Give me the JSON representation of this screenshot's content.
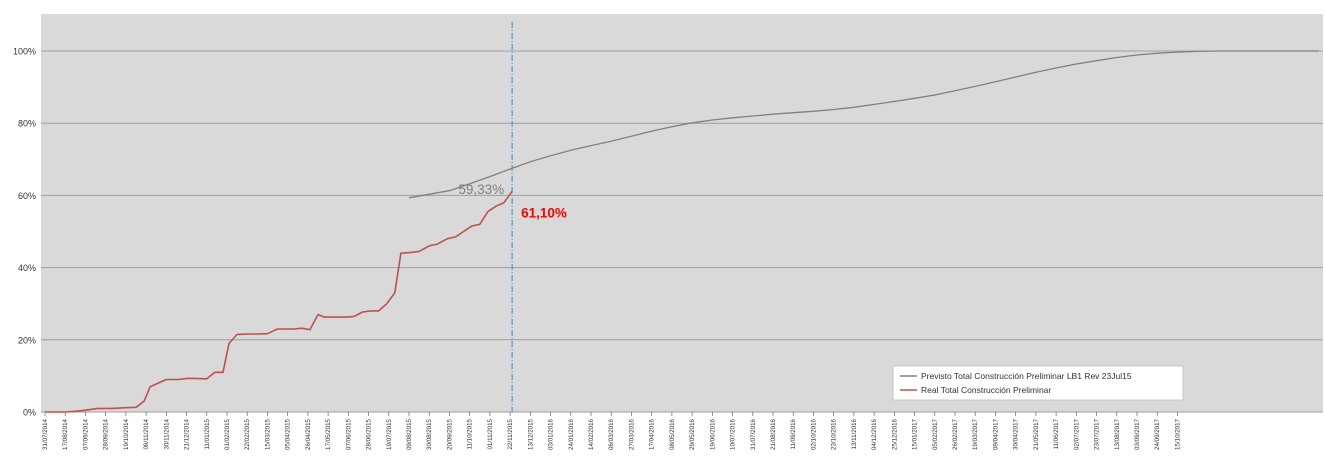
{
  "chart_data": {
    "type": "line",
    "title": "",
    "xlabel": "",
    "ylabel": "",
    "ylim": [
      0,
      100
    ],
    "y_ticks": [
      "0%",
      "20%",
      "40%",
      "60%",
      "80%",
      "100%"
    ],
    "grid": true,
    "legend_position": "bottom-right",
    "x_labels": [
      "31/07/2014",
      "17/08/2014",
      "07/09/2014",
      "28/09/2014",
      "19/10/2014",
      "09/11/2014",
      "30/11/2014",
      "21/12/2014",
      "11/01/2015",
      "01/02/2015",
      "22/02/2015",
      "15/03/2015",
      "05/04/2015",
      "26/04/2015",
      "17/05/2015",
      "07/06/2015",
      "28/06/2015",
      "19/07/2015",
      "09/08/2015",
      "30/08/2015",
      "20/09/2015",
      "11/10/2015",
      "01/11/2015",
      "22/11/2015",
      "13/12/2015",
      "03/01/2016",
      "24/01/2016",
      "14/02/2016",
      "06/03/2016",
      "27/03/2016",
      "17/04/2016",
      "08/05/2016",
      "29/05/2016",
      "19/06/2016",
      "10/07/2016",
      "31/07/2016",
      "21/08/2016",
      "11/09/2016",
      "02/10/2016",
      "23/10/2016",
      "13/11/2016",
      "04/12/2016",
      "25/12/2016",
      "15/01/2017",
      "05/02/2017",
      "26/02/2017",
      "19/03/2017",
      "09/04/2017",
      "30/04/2017",
      "21/05/2017",
      "11/06/2017",
      "02/07/2017",
      "23/07/2017",
      "13/08/2017",
      "03/09/2017",
      "24/09/2017",
      "15/10/2017"
    ],
    "series": [
      {
        "name": "Previsto Total Construcción Preliminar LB1 Rev 23Jul15",
        "color": "#808080",
        "points": [
          [
            18,
            59.33
          ],
          [
            20,
            61.3
          ],
          [
            21,
            63.2
          ],
          [
            22,
            65.2
          ],
          [
            23,
            67.3
          ],
          [
            24,
            69.3
          ],
          [
            25,
            71
          ],
          [
            26,
            72.5
          ],
          [
            27,
            73.8
          ],
          [
            28,
            75
          ],
          [
            29,
            76.4
          ],
          [
            30,
            77.8
          ],
          [
            31,
            79
          ],
          [
            32,
            80.1
          ],
          [
            33,
            80.9
          ],
          [
            34,
            81.5
          ],
          [
            35,
            82
          ],
          [
            36,
            82.5
          ],
          [
            37,
            82.9
          ],
          [
            38,
            83.3
          ],
          [
            39,
            83.8
          ],
          [
            40,
            84.4
          ],
          [
            41,
            85.2
          ],
          [
            42,
            86
          ],
          [
            43,
            86.9
          ],
          [
            44,
            87.8
          ],
          [
            45,
            89
          ],
          [
            46,
            90.2
          ],
          [
            47,
            91.5
          ],
          [
            48,
            92.8
          ],
          [
            49,
            94.1
          ],
          [
            50,
            95.3
          ],
          [
            51,
            96.4
          ],
          [
            52,
            97.3
          ],
          [
            53,
            98.2
          ],
          [
            54,
            98.9
          ],
          [
            55,
            99.4
          ],
          [
            56,
            99.7
          ],
          [
            57,
            99.9
          ],
          [
            58,
            100
          ],
          [
            60,
            100
          ],
          [
            62,
            100
          ],
          [
            63,
            100
          ]
        ]
      },
      {
        "name": "Real Total  Construcción Preliminar",
        "color": "#c0504d",
        "points": [
          [
            0,
            0
          ],
          [
            1,
            0
          ],
          [
            1.5,
            0.2
          ],
          [
            2,
            0.5
          ],
          [
            2.6,
            1
          ],
          [
            3.3,
            1
          ],
          [
            4,
            1.2
          ],
          [
            4.5,
            1.3
          ],
          [
            4.9,
            3
          ],
          [
            5.2,
            7
          ],
          [
            5.6,
            8
          ],
          [
            6,
            9
          ],
          [
            6.6,
            9
          ],
          [
            7,
            9.3
          ],
          [
            7.4,
            9.3
          ],
          [
            8,
            9.2
          ],
          [
            8.4,
            11
          ],
          [
            8.8,
            11
          ],
          [
            9.1,
            19
          ],
          [
            9.5,
            21.5
          ],
          [
            10,
            21.6
          ],
          [
            10.5,
            21.6
          ],
          [
            11,
            21.7
          ],
          [
            11.3,
            22.5
          ],
          [
            11.5,
            23
          ],
          [
            12.3,
            23
          ],
          [
            12.7,
            23.2
          ],
          [
            13.1,
            22.8
          ],
          [
            13.5,
            27
          ],
          [
            13.8,
            26.3
          ],
          [
            14.2,
            26.3
          ],
          [
            15,
            26.3
          ],
          [
            15.3,
            26.5
          ],
          [
            15.7,
            27.7
          ],
          [
            16.1,
            28
          ],
          [
            16.5,
            28
          ],
          [
            16.9,
            30
          ],
          [
            17.3,
            33
          ],
          [
            17.6,
            44
          ],
          [
            18.1,
            44.2
          ],
          [
            18.5,
            44.5
          ],
          [
            19,
            46
          ],
          [
            19.4,
            46.5
          ],
          [
            19.9,
            48
          ],
          [
            20.3,
            48.5
          ],
          [
            20.7,
            50
          ],
          [
            21.1,
            51.5
          ],
          [
            21.5,
            52
          ],
          [
            21.9,
            55.5
          ],
          [
            22.3,
            57
          ],
          [
            22.7,
            58
          ],
          [
            23.1,
            61.1
          ]
        ]
      }
    ],
    "marker": {
      "x": 23.1,
      "label": "status-date"
    },
    "annotations": [
      {
        "text": "59,33%",
        "value": 59.33,
        "color": "#7f7f7f"
      },
      {
        "text": "61,10%",
        "value": 61.1,
        "color": "#ff0000"
      }
    ]
  }
}
